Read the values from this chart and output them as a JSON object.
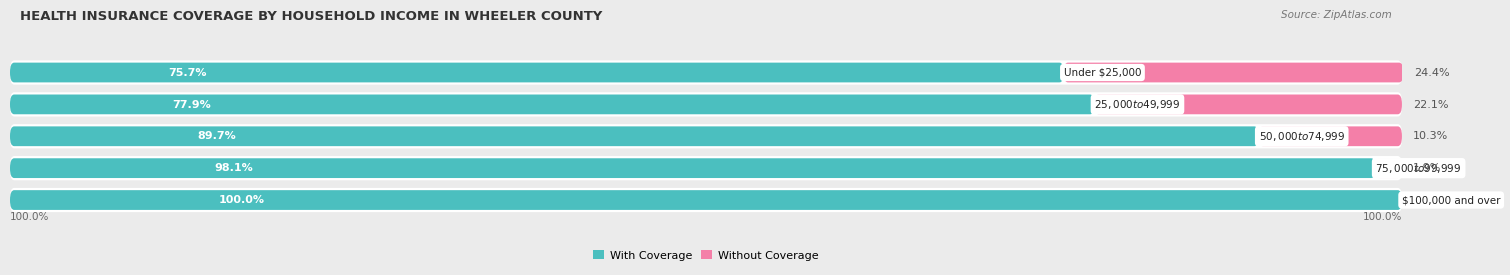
{
  "title": "HEALTH INSURANCE COVERAGE BY HOUSEHOLD INCOME IN WHEELER COUNTY",
  "source": "Source: ZipAtlas.com",
  "categories": [
    "Under $25,000",
    "$25,000 to $49,999",
    "$50,000 to $74,999",
    "$75,000 to $99,999",
    "$100,000 and over"
  ],
  "with_coverage": [
    75.7,
    77.9,
    89.7,
    98.1,
    100.0
  ],
  "without_coverage": [
    24.4,
    22.1,
    10.3,
    1.9,
    0.0
  ],
  "color_with": "#4bbfbf",
  "color_without": "#f47fa8",
  "color_without_light": "#f9b8ce",
  "bg_color": "#ebebeb",
  "bar_bg": "#ffffff",
  "title_fontsize": 9.5,
  "label_fontsize": 8,
  "legend_fontsize": 8,
  "source_fontsize": 7.5,
  "axis_label_fontsize": 7.5
}
